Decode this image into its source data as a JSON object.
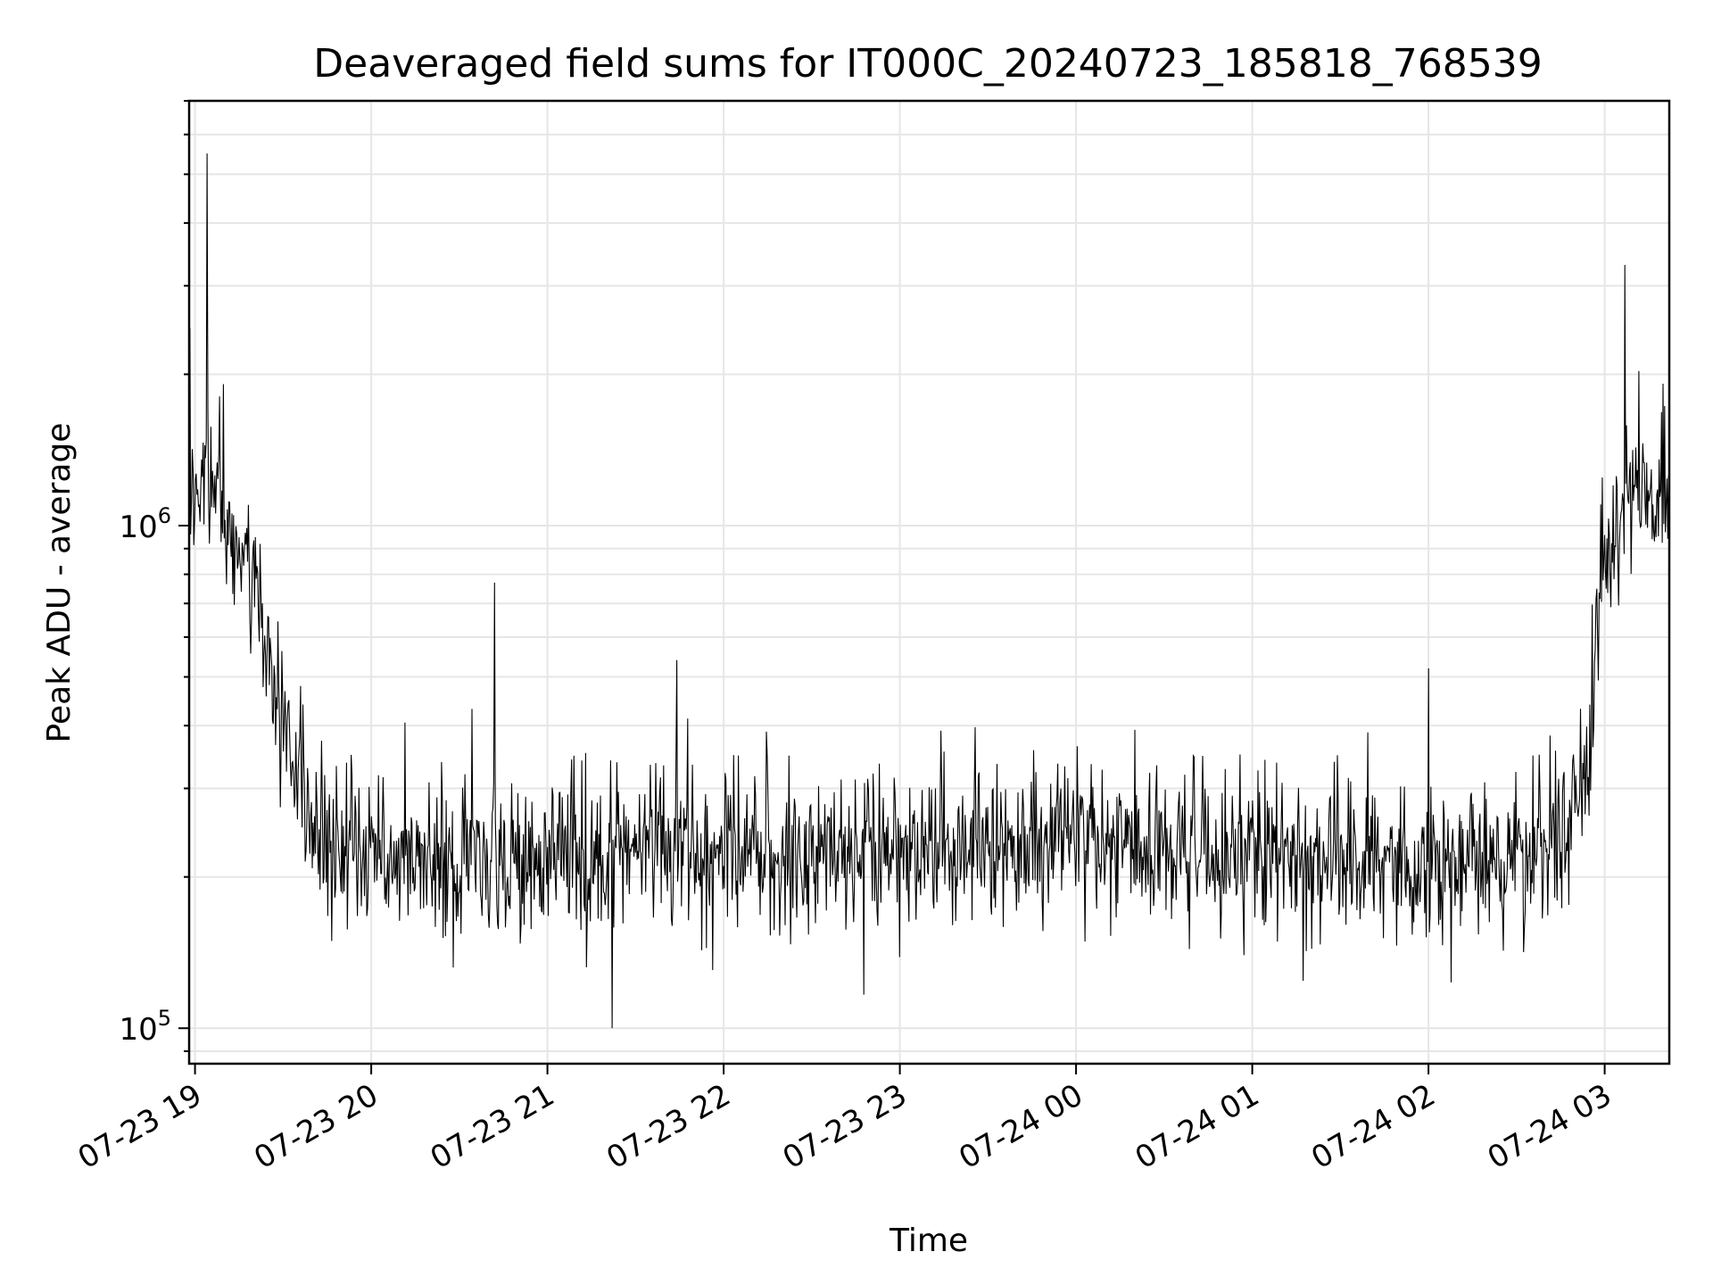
{
  "chart_data": {
    "type": "line",
    "title": "Deaveraged field sums for IT000C_20240723_185818_768539",
    "xlabel": "Time",
    "ylabel": "Peak ADU - average",
    "yscale": "log",
    "ylim": [
      85000,
      7000000
    ],
    "xlim": [
      "2024-07-23 18:58",
      "2024-07-24 03:22"
    ],
    "grid": true,
    "legend": "none",
    "x_ticks": [
      "07-23 19",
      "07-23 20",
      "07-23 21",
      "07-23 22",
      "07-23 23",
      "07-24 00",
      "07-24 01",
      "07-24 02",
      "07-24 03"
    ],
    "y_ticks": [
      {
        "base": "10",
        "exp": "5"
      },
      {
        "base": "10",
        "exp": "6"
      }
    ],
    "line_color": "#000000",
    "series": [
      {
        "x": [
          "2024-07-23 18:58",
          "2024-07-23 19:03",
          "2024-07-23 19:08",
          "2024-07-23 19:13",
          "2024-07-23 19:18",
          "2024-07-23 19:23",
          "2024-07-23 19:30",
          "2024-07-23 19:40",
          "2024-07-23 19:50",
          "2024-07-23 20:00",
          "2024-07-23 20:30",
          "2024-07-23 21:00",
          "2024-07-23 21:30",
          "2024-07-23 22:00",
          "2024-07-23 22:30",
          "2024-07-23 23:00",
          "2024-07-23 23:30",
          "2024-07-24 00:00",
          "2024-07-24 00:30",
          "2024-07-24 01:00",
          "2024-07-24 01:30",
          "2024-07-24 02:00",
          "2024-07-24 02:30",
          "2024-07-24 02:45",
          "2024-07-24 02:52",
          "2024-07-24 02:56",
          "2024-07-24 03:00",
          "2024-07-24 03:05",
          "2024-07-24 03:10",
          "2024-07-24 03:15",
          "2024-07-24 03:22"
        ],
        "y": [
          1100000,
          1250000,
          1150000,
          950000,
          800000,
          620000,
          420000,
          260000,
          225000,
          215000,
          218000,
          220000,
          222000,
          226000,
          225000,
          228000,
          230000,
          234000,
          225000,
          222000,
          218000,
          215000,
          220000,
          240000,
          300000,
          460000,
          850000,
          1100000,
          1150000,
          1120000,
          1100000
        ]
      }
    ],
    "notable_spikes": [
      {
        "x": "2024-07-23 19:04",
        "y": 5500000
      },
      {
        "x": "2024-07-23 20:42",
        "y": 770000
      },
      {
        "x": "2024-07-23 21:22",
        "y": 100000
      },
      {
        "x": "2024-07-23 21:44",
        "y": 540000
      },
      {
        "x": "2024-07-24 02:00",
        "y": 520000
      },
      {
        "x": "2024-07-24 03:07",
        "y": 3300000
      }
    ]
  }
}
